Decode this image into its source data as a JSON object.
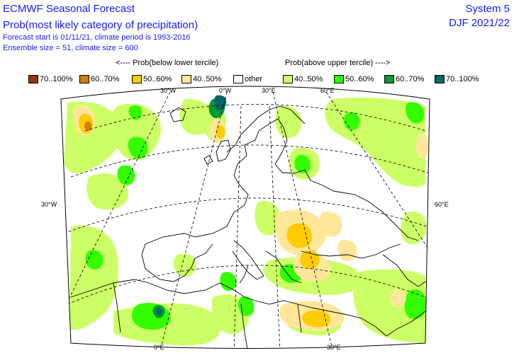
{
  "header": {
    "title": "ECMWF Seasonal Forecast",
    "subtitle": "Prob(most likely category of precipitation)",
    "forecast_info": "Forecast start is 01/11/21, climate period is 1993-2016",
    "ensemble_info": "Ensemble size = 51, climate size = 600",
    "system": "System 5",
    "season": "DJF 2021/22"
  },
  "legend": {
    "below_header": "<---- Prob(below lower tercile)",
    "above_header": "Prob(above upper tercile) ---->",
    "items": [
      {
        "label": "70..100%",
        "color": "#993300"
      },
      {
        "label": "60..70%",
        "color": "#cc8000"
      },
      {
        "label": "50..60%",
        "color": "#ffcc00"
      },
      {
        "label": "40..50%",
        "color": "#ffe699"
      },
      {
        "label": "other",
        "color": "#ffffff"
      },
      {
        "label": "40..50%",
        "color": "#ccff66"
      },
      {
        "label": "50..60%",
        "color": "#33ff00"
      },
      {
        "label": "60..70%",
        "color": "#009933"
      },
      {
        "label": "70..100%",
        "color": "#006666"
      }
    ]
  },
  "map": {
    "lon_labels_top": [
      "30°W",
      "0°W",
      "30°E",
      "60°E"
    ],
    "lon_labels_bottom": [
      "0°E",
      "30°E"
    ],
    "lat_labels": [
      "30°W",
      "60°E"
    ]
  }
}
